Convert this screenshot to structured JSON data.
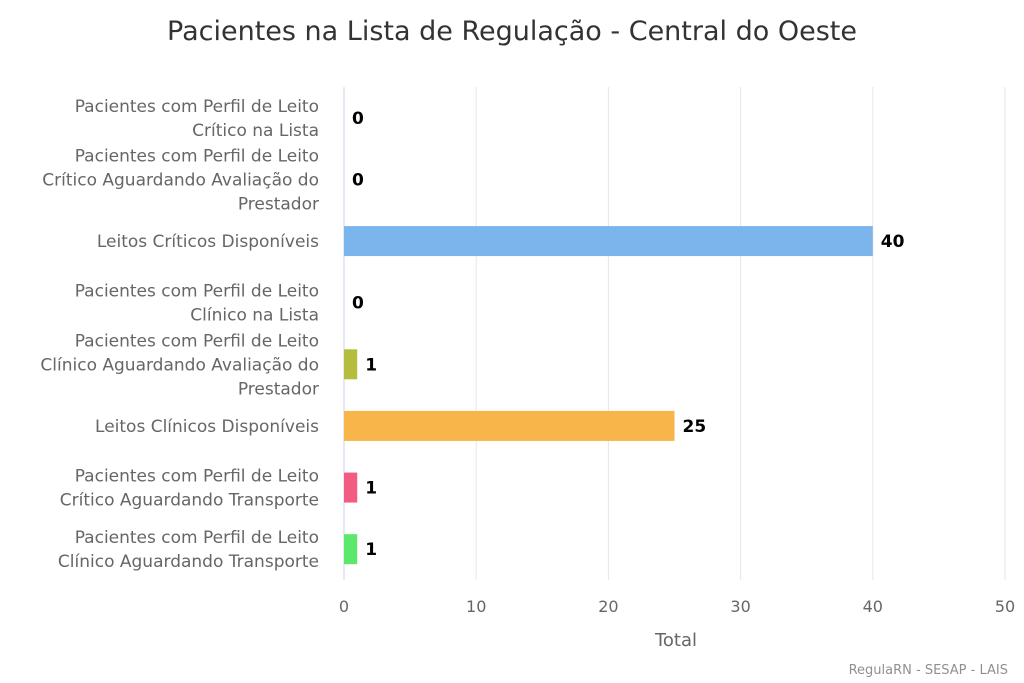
{
  "chart_data": {
    "type": "bar",
    "orientation": "horizontal",
    "title": "Pacientes na Lista de Regulação - Central do Oeste",
    "xlabel": "Total",
    "ylabel": "",
    "xlim": [
      0,
      50
    ],
    "ticks": [
      "0",
      "10",
      "20",
      "30",
      "40",
      "50"
    ],
    "grid": true,
    "legend": "none",
    "categories": [
      [
        "Pacientes com Perfil de Leito",
        "Crítico na Lista"
      ],
      [
        "Pacientes com Perfil de Leito",
        "Crítico Aguardando Avaliação do",
        "Prestador"
      ],
      [
        "Leitos Críticos Disponíveis"
      ],
      [
        "Pacientes com Perfil de Leito",
        "Clínico na Lista"
      ],
      [
        "Pacientes com Perfil de Leito",
        "Clínico Aguardando Avaliação do",
        "Prestador"
      ],
      [
        "Leitos Clínicos Disponíveis"
      ],
      [
        "Pacientes com Perfil de Leito",
        "Crítico Aguardando Transporte"
      ],
      [
        "Pacientes com Perfil de Leito",
        "Clínico Aguardando Transporte"
      ]
    ],
    "values": [
      0,
      0,
      40,
      0,
      1,
      25,
      1,
      1
    ],
    "colors": [
      "#7cb5ec",
      "#434348",
      "#7cb5ec",
      "#f7a35c",
      "#b5bd3c",
      "#f7b54a",
      "#f15c80",
      "#5ce86a"
    ]
  },
  "credits": "RegulaRN - SESAP - LAIS"
}
